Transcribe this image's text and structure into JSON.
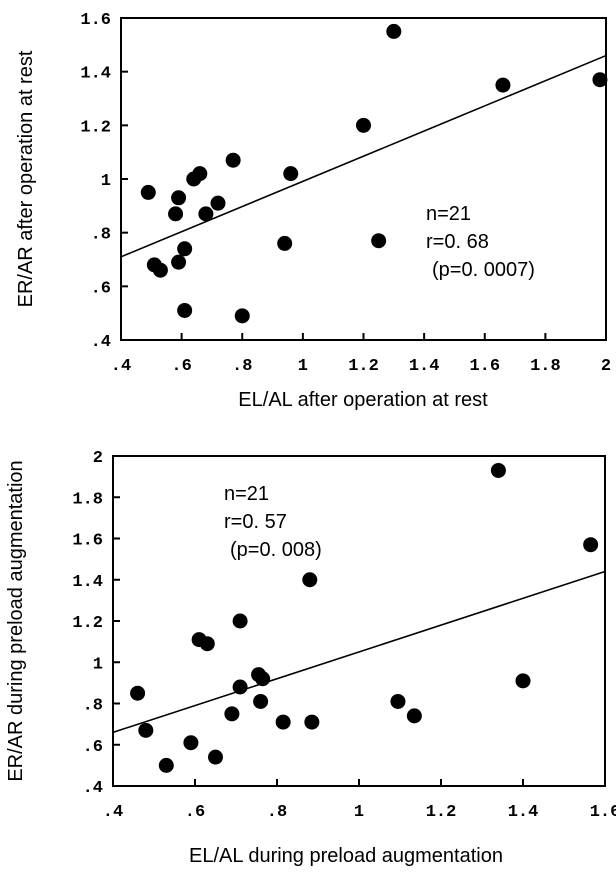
{
  "chart_data": [
    {
      "type": "scatter",
      "title": "",
      "xlabel": "EL/AL after operation at rest",
      "ylabel": "ER/AR after operation at rest",
      "xlim": [
        0.4,
        2.0
      ],
      "ylim": [
        0.4,
        1.6
      ],
      "xticks": [
        0.4,
        0.6,
        0.8,
        1.0,
        1.2,
        1.4,
        1.6,
        1.8,
        2.0
      ],
      "xtick_labels": [
        ".4",
        ".6",
        ".8",
        "1",
        "1.2",
        "1.4",
        "1.6",
        "1.8",
        "2"
      ],
      "yticks": [
        0.4,
        0.6,
        0.8,
        1.0,
        1.2,
        1.4,
        1.6
      ],
      "ytick_labels": [
        ".4",
        ".6",
        ".8",
        "1",
        "1.2",
        "1.4",
        "1.6"
      ],
      "grid": false,
      "annotations": [
        "n=21",
        "r=0. 68",
        "(p=0. 0007)"
      ],
      "regression_line": {
        "x": [
          0.4,
          2.0
        ],
        "y": [
          0.71,
          1.46
        ]
      },
      "points": [
        {
          "x": 0.49,
          "y": 0.95
        },
        {
          "x": 0.51,
          "y": 0.68
        },
        {
          "x": 0.53,
          "y": 0.66
        },
        {
          "x": 0.58,
          "y": 0.87
        },
        {
          "x": 0.59,
          "y": 0.93
        },
        {
          "x": 0.59,
          "y": 0.69
        },
        {
          "x": 0.61,
          "y": 0.74
        },
        {
          "x": 0.61,
          "y": 0.51
        },
        {
          "x": 0.64,
          "y": 1.0
        },
        {
          "x": 0.66,
          "y": 1.02
        },
        {
          "x": 0.68,
          "y": 0.87
        },
        {
          "x": 0.72,
          "y": 0.91
        },
        {
          "x": 0.77,
          "y": 1.07
        },
        {
          "x": 0.8,
          "y": 0.49
        },
        {
          "x": 0.94,
          "y": 0.76
        },
        {
          "x": 0.96,
          "y": 1.02
        },
        {
          "x": 1.2,
          "y": 1.2
        },
        {
          "x": 1.25,
          "y": 0.77
        },
        {
          "x": 1.3,
          "y": 1.55
        },
        {
          "x": 1.66,
          "y": 1.35
        },
        {
          "x": 1.98,
          "y": 1.37
        }
      ]
    },
    {
      "type": "scatter",
      "title": "",
      "xlabel": "EL/AL during preload augmentation",
      "ylabel": "ER/AR during preload augmentation",
      "xlim": [
        0.4,
        1.6
      ],
      "ylim": [
        0.4,
        2.0
      ],
      "xticks": [
        0.4,
        0.6,
        0.8,
        1.0,
        1.2,
        1.4,
        1.6
      ],
      "xtick_labels": [
        ".4",
        ".6",
        ".8",
        "1",
        "1.2",
        "1.4",
        "1.6"
      ],
      "yticks": [
        0.4,
        0.6,
        0.8,
        1.0,
        1.2,
        1.4,
        1.6,
        1.8,
        2.0
      ],
      "ytick_labels": [
        ".4",
        ".6",
        ".8",
        "1",
        "1.2",
        "1.4",
        "1.6",
        "1.8",
        "2"
      ],
      "grid": false,
      "annotations": [
        "n=21",
        "r=0. 57",
        "(p=0. 008)"
      ],
      "regression_line": {
        "x": [
          0.4,
          1.6
        ],
        "y": [
          0.66,
          1.44
        ]
      },
      "points": [
        {
          "x": 0.46,
          "y": 0.85
        },
        {
          "x": 0.48,
          "y": 0.67
        },
        {
          "x": 0.53,
          "y": 0.5
        },
        {
          "x": 0.59,
          "y": 0.61
        },
        {
          "x": 0.61,
          "y": 1.11
        },
        {
          "x": 0.63,
          "y": 1.09
        },
        {
          "x": 0.65,
          "y": 0.54
        },
        {
          "x": 0.69,
          "y": 0.75
        },
        {
          "x": 0.71,
          "y": 0.88
        },
        {
          "x": 0.71,
          "y": 1.2
        },
        {
          "x": 0.755,
          "y": 0.94
        },
        {
          "x": 0.76,
          "y": 0.81
        },
        {
          "x": 0.765,
          "y": 0.92
        },
        {
          "x": 0.815,
          "y": 0.71
        },
        {
          "x": 0.88,
          "y": 1.4
        },
        {
          "x": 0.885,
          "y": 0.71
        },
        {
          "x": 1.095,
          "y": 0.81
        },
        {
          "x": 1.135,
          "y": 0.74
        },
        {
          "x": 1.34,
          "y": 1.93
        },
        {
          "x": 1.4,
          "y": 0.91
        },
        {
          "x": 1.565,
          "y": 1.57
        }
      ]
    }
  ]
}
